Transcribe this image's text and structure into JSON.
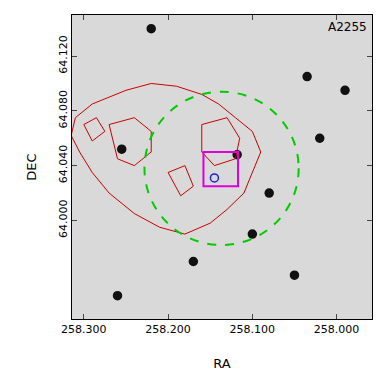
{
  "chart_data": {
    "type": "overlay",
    "annotation": "A2255",
    "x_label": "RA",
    "y_label": "DEC",
    "xlim": [
      258.314,
      257.958
    ],
    "ylim": [
      63.928,
      64.15
    ],
    "xticks": [
      {
        "value": 258.3,
        "label": "258.300"
      },
      {
        "value": 258.2,
        "label": "258.200"
      },
      {
        "value": 258.1,
        "label": "258.100"
      },
      {
        "value": 258.0,
        "label": "258.000"
      }
    ],
    "yticks": [
      {
        "value": 64.0,
        "label": "64.000"
      },
      {
        "value": 64.04,
        "label": "64.040"
      },
      {
        "value": 64.08,
        "label": "64.080"
      },
      {
        "value": 64.12,
        "label": "64.120"
      }
    ],
    "grid": false,
    "series": [
      {
        "type": "scatter",
        "color": "#111111",
        "marker": "circle",
        "x": [
          258.255,
          258.118,
          258.08,
          258.035,
          257.99,
          258.22,
          258.17,
          258.05,
          258.26,
          258.02,
          258.1
        ],
        "y": [
          64.052,
          64.048,
          64.02,
          64.105,
          64.095,
          64.14,
          63.97,
          63.96,
          63.945,
          64.06,
          63.99
        ]
      },
      {
        "type": "line",
        "color": "#cc0000",
        "line_style": "solid",
        "x": [
          258.31,
          258.29,
          258.27,
          258.25,
          258.22,
          258.19,
          258.16,
          258.14,
          258.12,
          258.1,
          258.09,
          258.1,
          258.11,
          258.13,
          258.15,
          258.18,
          258.21,
          258.24,
          258.27,
          258.29,
          258.305,
          258.315,
          258.31
        ],
        "y": [
          64.075,
          64.085,
          64.09,
          64.095,
          64.1,
          64.098,
          64.092,
          64.085,
          64.075,
          64.065,
          64.05,
          64.035,
          64.02,
          64.008,
          63.998,
          63.99,
          63.995,
          64.005,
          64.02,
          64.035,
          64.05,
          64.062,
          64.075
        ]
      },
      {
        "type": "line",
        "color": "#cc0000",
        "line_style": "solid",
        "x": [
          258.27,
          258.24,
          258.22,
          258.22,
          258.24,
          258.26,
          258.27
        ],
        "y": [
          64.07,
          64.075,
          64.065,
          64.05,
          64.04,
          64.045,
          64.07
        ]
      },
      {
        "type": "line",
        "color": "#cc0000",
        "line_style": "solid",
        "x": [
          258.16,
          258.13,
          258.115,
          258.12,
          258.145,
          258.16,
          258.16
        ],
        "y": [
          64.07,
          64.075,
          64.06,
          64.045,
          64.04,
          64.05,
          64.07
        ]
      },
      {
        "type": "line",
        "color": "#cc0000",
        "line_style": "solid",
        "x": [
          258.2,
          258.18,
          258.17,
          258.185,
          258.2
        ],
        "y": [
          64.035,
          64.04,
          64.025,
          64.018,
          64.035
        ]
      },
      {
        "type": "line",
        "color": "#cc0000",
        "line_style": "solid",
        "x": [
          258.3,
          258.285,
          258.275,
          258.29,
          258.3
        ],
        "y": [
          64.07,
          64.075,
          64.065,
          64.058,
          64.07
        ]
      },
      {
        "type": "circle",
        "color": "#00cc00",
        "line_style": "dash",
        "x": [
          258.228,
          258.045
        ],
        "y": [
          63.982,
          64.094
        ]
      },
      {
        "type": "rect",
        "color": "#dd00dd",
        "line_style": "solid",
        "x": [
          258.158,
          258.117
        ],
        "y": [
          64.025,
          64.05
        ]
      },
      {
        "type": "scatter",
        "color": "#2222cc",
        "marker": "circle-open",
        "x": [
          258.145
        ],
        "y": [
          64.031
        ]
      }
    ]
  }
}
